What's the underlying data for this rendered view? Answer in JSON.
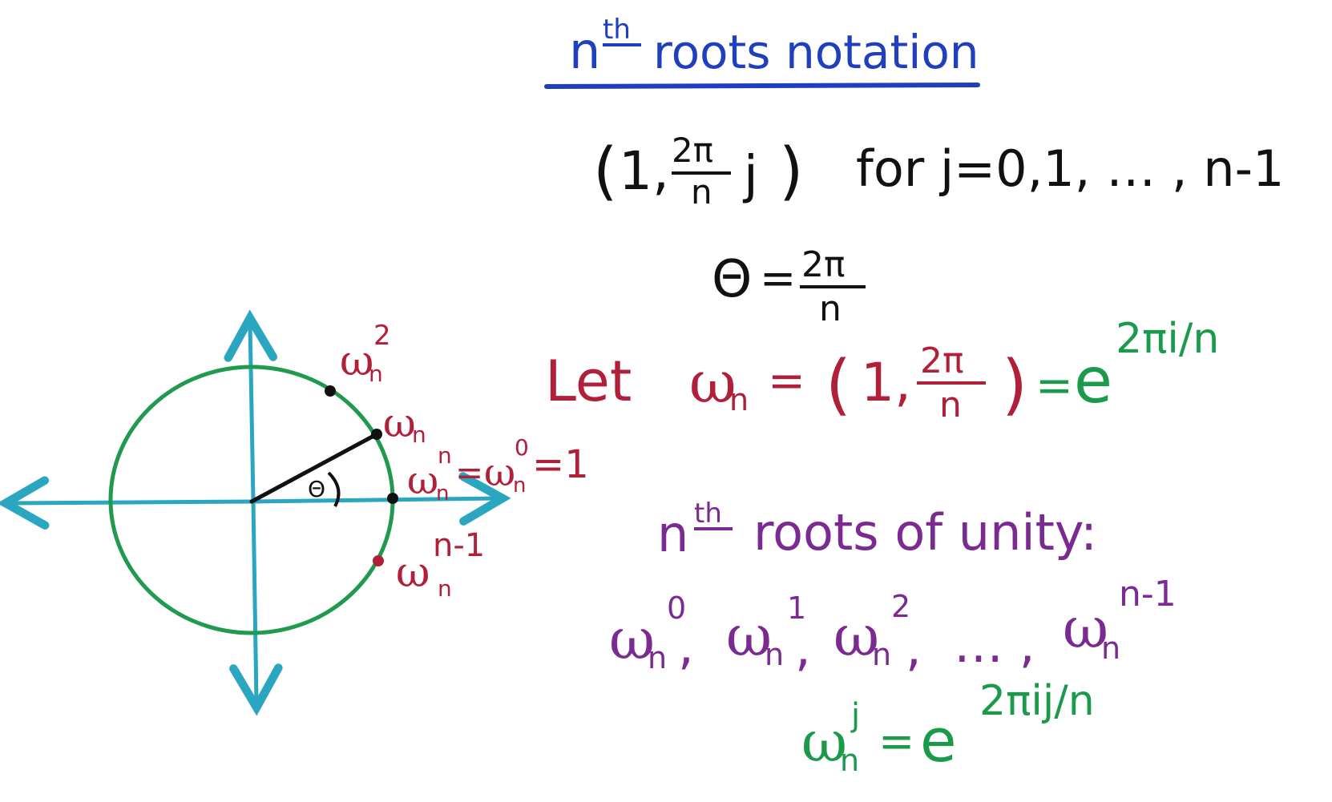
{
  "colors": {
    "blue": "#1f3fbf",
    "black": "#111111",
    "red": "#b0203a",
    "green": "#1a9a4a",
    "purple": "#7a2a90",
    "teal": "#2aa6c0",
    "circle": "#1f9a4e"
  },
  "title": {
    "n": "n",
    "th": "th",
    "text": "roots notation"
  },
  "polar_line": {
    "open_paren": "(",
    "one": "1,",
    "frac_num": "2π",
    "frac_den": "n",
    "j": "j",
    "close_paren": ")",
    "suffix": "for j=0,1, … , n-1"
  },
  "theta_line": {
    "theta": "Θ",
    "eq": "=",
    "num": "2π",
    "den": "n"
  },
  "let_line": {
    "let": "Let",
    "w": "ω",
    "w_sub": "n",
    "eq": "=",
    "open_paren": "(",
    "one": "1,",
    "frac_num": "2π",
    "frac_den": "n",
    "close_paren": ")",
    "eq2": "=",
    "e": "e",
    "exp": "2πi/n"
  },
  "roots_heading": {
    "n": "n",
    "th": "th",
    "text": "roots of unity:"
  },
  "roots_list": {
    "terms": [
      {
        "base": "ω",
        "sub": "n",
        "sup": "0"
      },
      {
        "base": "ω",
        "sub": "n",
        "sup": "1"
      },
      {
        "base": "ω",
        "sub": "n",
        "sup": "2"
      }
    ],
    "sep": ",",
    "ellipsis": "… ,",
    "last": {
      "base": "ω",
      "sub": "n",
      "sup": "n-1"
    }
  },
  "formula": {
    "base": "ω",
    "sub": "n",
    "sup": "j",
    "eq": "=",
    "e": "e",
    "exp": "2πij/n"
  },
  "diagram": {
    "theta_label": "Θ",
    "w2": {
      "base": "ω",
      "sub": "n",
      "sup": "2"
    },
    "w1": {
      "base": "ω",
      "sub": "n"
    },
    "w0": {
      "text": "ω",
      "sub1": "n",
      "sup1": "n",
      "eq": "=",
      "text2": "ω",
      "sub2": "n",
      "sup2": "0",
      "tail": "=1"
    },
    "wn1": {
      "base": "ω",
      "sub": "n",
      "sup": "n-1"
    }
  }
}
